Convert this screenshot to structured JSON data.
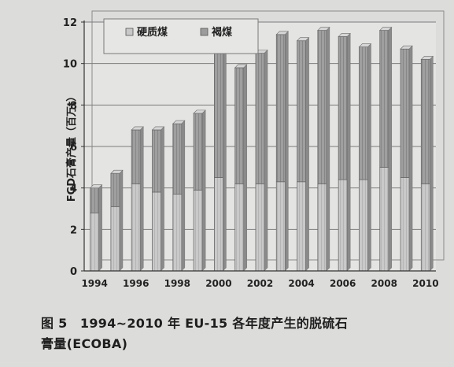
{
  "chart_data": {
    "type": "bar",
    "stacked": true,
    "x": [
      "1994",
      "1995",
      "1996",
      "1997",
      "1998",
      "1999",
      "2000",
      "2001",
      "2002",
      "2003",
      "2004",
      "2005",
      "2006",
      "2007",
      "2008",
      "2009",
      "2010"
    ],
    "xtick_labels": [
      "1994",
      "1996",
      "1998",
      "2000",
      "2002",
      "2004",
      "2006",
      "2008",
      "2010"
    ],
    "series": [
      {
        "name": "硬质煤",
        "values": [
          2.8,
          3.1,
          4.2,
          3.8,
          3.7,
          3.9,
          4.5,
          4.2,
          4.2,
          4.3,
          4.3,
          4.2,
          4.4,
          4.4,
          5.0,
          4.5,
          4.2
        ],
        "color": "#c8c8c8"
      },
      {
        "name": "褐煤",
        "values": [
          1.2,
          1.6,
          2.6,
          3.0,
          3.4,
          3.7,
          6.2,
          5.6,
          6.3,
          7.1,
          6.8,
          7.4,
          6.9,
          6.4,
          6.6,
          6.2,
          6.0
        ],
        "color": "#9c9c9c"
      }
    ],
    "ylabel": "FGD石膏产量（百万t）",
    "ylim": [
      0,
      12
    ],
    "yticks": [
      0,
      2,
      4,
      6,
      8,
      10,
      12
    ],
    "grid": true,
    "legend": "top-left"
  },
  "caption": {
    "line1": "图 5　1994~2010 年 EU-15 各年度产生的脱硫石",
    "line2": "膏量(ECOBA)"
  }
}
